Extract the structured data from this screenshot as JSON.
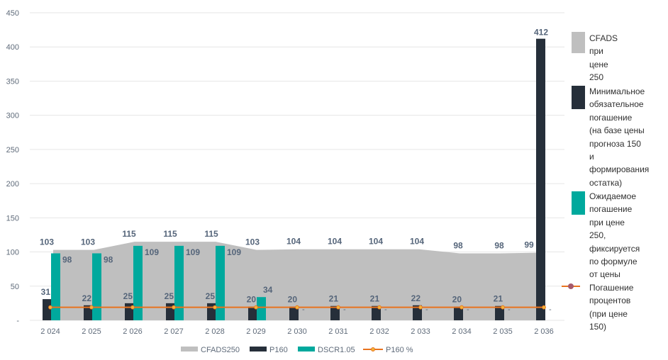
{
  "colors": {
    "cfads": "#bfbfbf",
    "p160": "#262f3a",
    "dscr": "#00a99d",
    "p160pct_line": "#e8731f",
    "p160pct_marker": "#f2b53a",
    "grid": "#e6e6e6"
  },
  "chart_data": {
    "type": "bar",
    "categories": [
      "2 024",
      "2 025",
      "2 026",
      "2 027",
      "2 028",
      "2 029",
      "2 030",
      "2 031",
      "2 032",
      "2 033",
      "2 034",
      "2 035",
      "2 036"
    ],
    "ylim": [
      0,
      450
    ],
    "yticks": [
      "-",
      "50",
      "100",
      "150",
      "200",
      "250",
      "300",
      "350",
      "400",
      "450"
    ],
    "grid": true,
    "series": [
      {
        "name": "CFADS250",
        "type": "area",
        "values": [
          103,
          103,
          115,
          115,
          115,
          103,
          104,
          104,
          104,
          104,
          98,
          98,
          99
        ],
        "labels": [
          "103",
          "103",
          "115",
          "115",
          "115",
          "103",
          "104",
          "104",
          "104",
          "104",
          "98",
          "98",
          "99"
        ]
      },
      {
        "name": "P160",
        "type": "bar",
        "values": [
          31,
          22,
          25,
          25,
          25,
          20,
          20,
          21,
          21,
          22,
          20,
          21,
          412
        ],
        "labels": [
          "31",
          "22",
          "25",
          "25",
          "25",
          "20",
          "20",
          "21",
          "21",
          "22",
          "20",
          "21",
          "412"
        ]
      },
      {
        "name": "DSCR1.05",
        "type": "bar",
        "values": [
          98,
          98,
          109,
          109,
          109,
          34,
          0,
          0,
          0,
          0,
          0,
          0,
          0
        ],
        "labels": [
          "98",
          "98",
          "109",
          "109",
          "109",
          "34",
          "-",
          "-",
          "-",
          "-",
          "-",
          "-",
          "-"
        ]
      },
      {
        "name": "P160 %",
        "type": "line",
        "values": [
          19,
          19,
          19,
          19,
          19,
          19,
          19,
          19,
          19,
          19,
          19,
          19,
          19
        ]
      }
    ],
    "legend_placement": "bottom"
  },
  "side_legend": [
    {
      "text": "CFADS\nпри\nцене 250"
    },
    {
      "text": "Минимальное\nобязательное\nпогашение\n(на базе цены\nпрогноза 150\nи формирования\nостатка)"
    },
    {
      "text": "Ожидаемое\nпогашение\nпри цене 250,\nфиксируется\nпо формуле\nот цены"
    },
    {
      "text": "Погашение\nпроцентов\n(при цене 150)"
    }
  ]
}
